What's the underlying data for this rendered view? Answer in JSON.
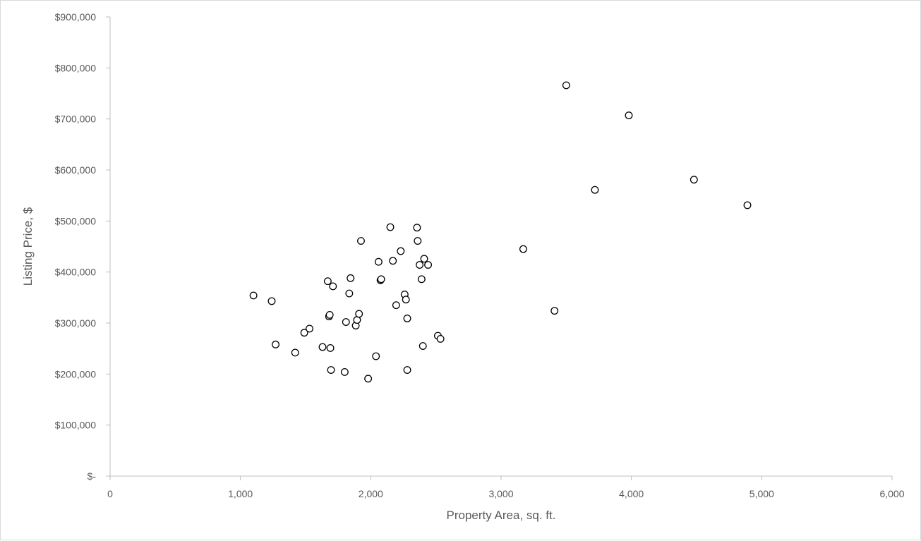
{
  "chart_data": {
    "type": "scatter",
    "title": "",
    "xlabel": "Property Area, sq. ft.",
    "ylabel": "Listing Price, $",
    "xlim": [
      0,
      6000
    ],
    "ylim": [
      0,
      900000
    ],
    "x_ticks": [
      0,
      1000,
      2000,
      3000,
      4000,
      5000,
      6000
    ],
    "x_tick_labels": [
      "0",
      "1,000",
      "2,000",
      "3,000",
      "4,000",
      "5,000",
      "6,000"
    ],
    "y_ticks": [
      0,
      100000,
      200000,
      300000,
      400000,
      500000,
      600000,
      700000,
      800000,
      900000
    ],
    "y_tick_labels": [
      "$-",
      "$100,000",
      "$200,000",
      "$300,000",
      "$400,000",
      "$500,000",
      "$600,000",
      "$700,000",
      "$800,000",
      "$900,000"
    ],
    "grid": false,
    "legend": "none",
    "marker": "open-circle",
    "series": [
      {
        "points": [
          [
            1100,
            354000
          ],
          [
            1240,
            343000
          ],
          [
            1270,
            258000
          ],
          [
            1420,
            242000
          ],
          [
            1490,
            281000
          ],
          [
            1530,
            289000
          ],
          [
            1630,
            253000
          ],
          [
            1670,
            382000
          ],
          [
            1680,
            313000
          ],
          [
            1685,
            316000
          ],
          [
            1690,
            251000
          ],
          [
            1695,
            208000
          ],
          [
            1710,
            372000
          ],
          [
            1800,
            204000
          ],
          [
            1810,
            302000
          ],
          [
            1835,
            358000
          ],
          [
            1845,
            388000
          ],
          [
            1885,
            295000
          ],
          [
            1895,
            306000
          ],
          [
            1910,
            318000
          ],
          [
            1925,
            461000
          ],
          [
            1980,
            191000
          ],
          [
            2040,
            235000
          ],
          [
            2060,
            420000
          ],
          [
            2075,
            384000
          ],
          [
            2080,
            386000
          ],
          [
            2150,
            488000
          ],
          [
            2170,
            422000
          ],
          [
            2195,
            335000
          ],
          [
            2230,
            441000
          ],
          [
            2260,
            356000
          ],
          [
            2270,
            346000
          ],
          [
            2280,
            309000
          ],
          [
            2280,
            208000
          ],
          [
            2355,
            487000
          ],
          [
            2360,
            461000
          ],
          [
            2375,
            414000
          ],
          [
            2390,
            386000
          ],
          [
            2400,
            255000
          ],
          [
            2410,
            426000
          ],
          [
            2440,
            414000
          ],
          [
            2515,
            275000
          ],
          [
            2535,
            269000
          ],
          [
            3170,
            445000
          ],
          [
            3410,
            324000
          ],
          [
            3500,
            766000
          ],
          [
            3720,
            561000
          ],
          [
            3980,
            707000
          ],
          [
            4480,
            581000
          ],
          [
            4890,
            531000
          ]
        ]
      }
    ]
  }
}
